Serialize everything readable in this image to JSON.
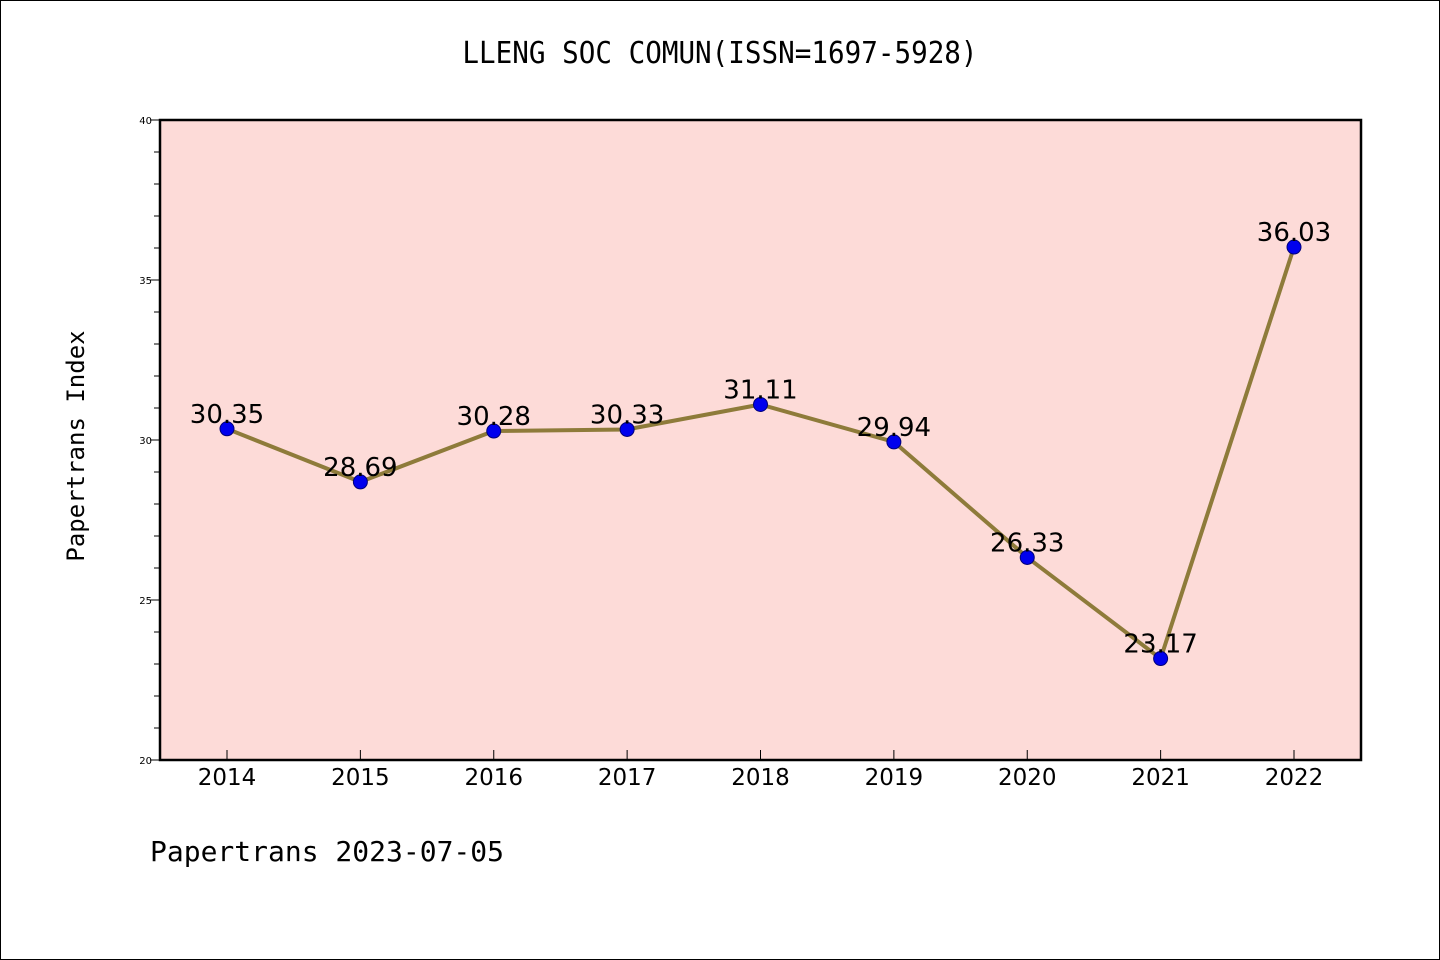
{
  "title": "LLENG SOC COMUN(ISSN=1697-5928)",
  "ylabel": "Papertrans Index",
  "footer": "Papertrans 2023-07-05",
  "colors": {
    "plot_background": "#fddbd8",
    "line": "#8e7b3a",
    "marker": "#0000ee",
    "marker_edge": "#00007a"
  },
  "chart_data": {
    "type": "line",
    "title": "LLENG SOC COMUN(ISSN=1697-5928)",
    "xlabel": "",
    "ylabel": "Papertrans Index",
    "categories": [
      "2014",
      "2015",
      "2016",
      "2017",
      "2018",
      "2019",
      "2020",
      "2021",
      "2022"
    ],
    "series": [
      {
        "values": [
          30.35,
          28.69,
          30.28,
          30.33,
          31.11,
          29.94,
          26.33,
          23.17,
          36.03
        ],
        "labels": [
          "30.35",
          "28.69",
          "30.28",
          "30.33",
          "31.11",
          "29.94",
          "26.33",
          "23.17",
          "36.03"
        ]
      }
    ],
    "ylim": [
      20,
      40
    ],
    "yticks": [
      "20",
      "25",
      "30",
      "35",
      "40"
    ],
    "grid": false,
    "legend": "none"
  }
}
